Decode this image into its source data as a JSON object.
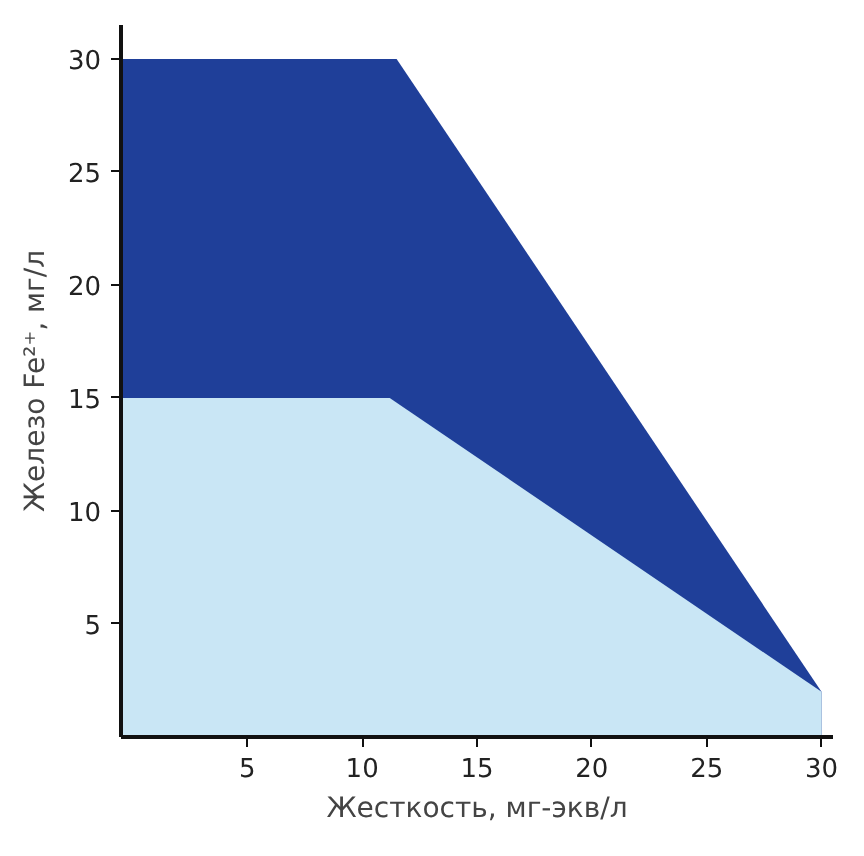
{
  "chart_data": {
    "type": "area",
    "xlabel": "Жесткость, мг-экв/л",
    "ylabel": "Железо Fe²⁺, мг/л",
    "series": [
      {
        "color": "#1f3f99",
        "x": [
          -0.5,
          11.5,
          30
        ],
        "values": [
          30,
          30,
          2
        ]
      },
      {
        "color": "#c9e6f5",
        "x": [
          -0.5,
          11.2,
          30
        ],
        "values": [
          15,
          15,
          2
        ]
      }
    ],
    "xlim": [
      -0.5,
      30.5
    ],
    "ylim": [
      0,
      31.5
    ],
    "xticks": [
      5,
      10,
      15,
      20,
      25,
      30
    ],
    "yticks": [
      5,
      10,
      15,
      20,
      25,
      30
    ],
    "grid": false
  }
}
